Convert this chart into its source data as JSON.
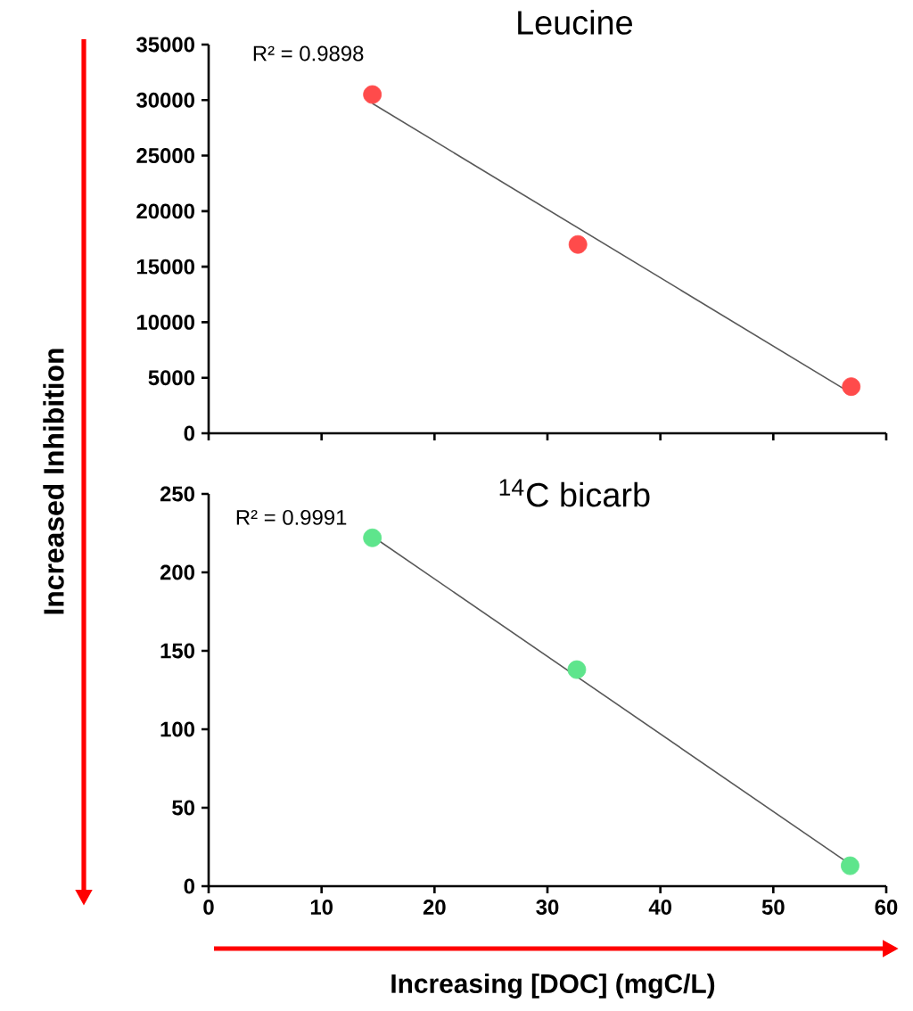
{
  "chart_data": [
    {
      "type": "scatter",
      "title": "Leucine",
      "ylabel": "Increased Inhibition",
      "annotations": [
        "R² = 0.9898"
      ],
      "xlim": [
        0,
        60
      ],
      "xticks": [
        0,
        10,
        20,
        30,
        40,
        50,
        60
      ],
      "ylim": [
        0,
        35000
      ],
      "yticks": [
        0,
        5000,
        10000,
        15000,
        20000,
        25000,
        30000,
        35000
      ],
      "tick_labels": "y",
      "marker": "circle",
      "series": [
        {
          "color": "#ff4b4b",
          "x": [
            14.5,
            32.7,
            56.9
          ],
          "values": [
            30500,
            17000,
            4200
          ]
        },
        {
          "type": "line",
          "color": "#595959",
          "x": [
            14.5,
            56.9
          ],
          "values": [
            29700,
            3600
          ],
          "marker": "none",
          "line_style": "solid"
        }
      ]
    },
    {
      "type": "scatter",
      "title": "$^{14}$C bicarb",
      "xlabel": "Increasing [DOC] (mgC/L)",
      "annotations": [
        "R² = 0.9991"
      ],
      "xlim": [
        0,
        60
      ],
      "xticks": [
        0,
        10,
        20,
        30,
        40,
        50,
        60
      ],
      "ylim": [
        0,
        250
      ],
      "yticks": [
        0,
        50,
        100,
        150,
        200,
        250
      ],
      "marker": "circle",
      "series": [
        {
          "color": "#5ee58c",
          "x": [
            14.5,
            32.6,
            56.8
          ],
          "values": [
            222,
            138,
            13
          ]
        },
        {
          "type": "line",
          "color": "#595959",
          "x": [
            14.5,
            56.8
          ],
          "values": [
            223,
            14
          ],
          "marker": "none",
          "line_style": "solid"
        }
      ]
    }
  ]
}
